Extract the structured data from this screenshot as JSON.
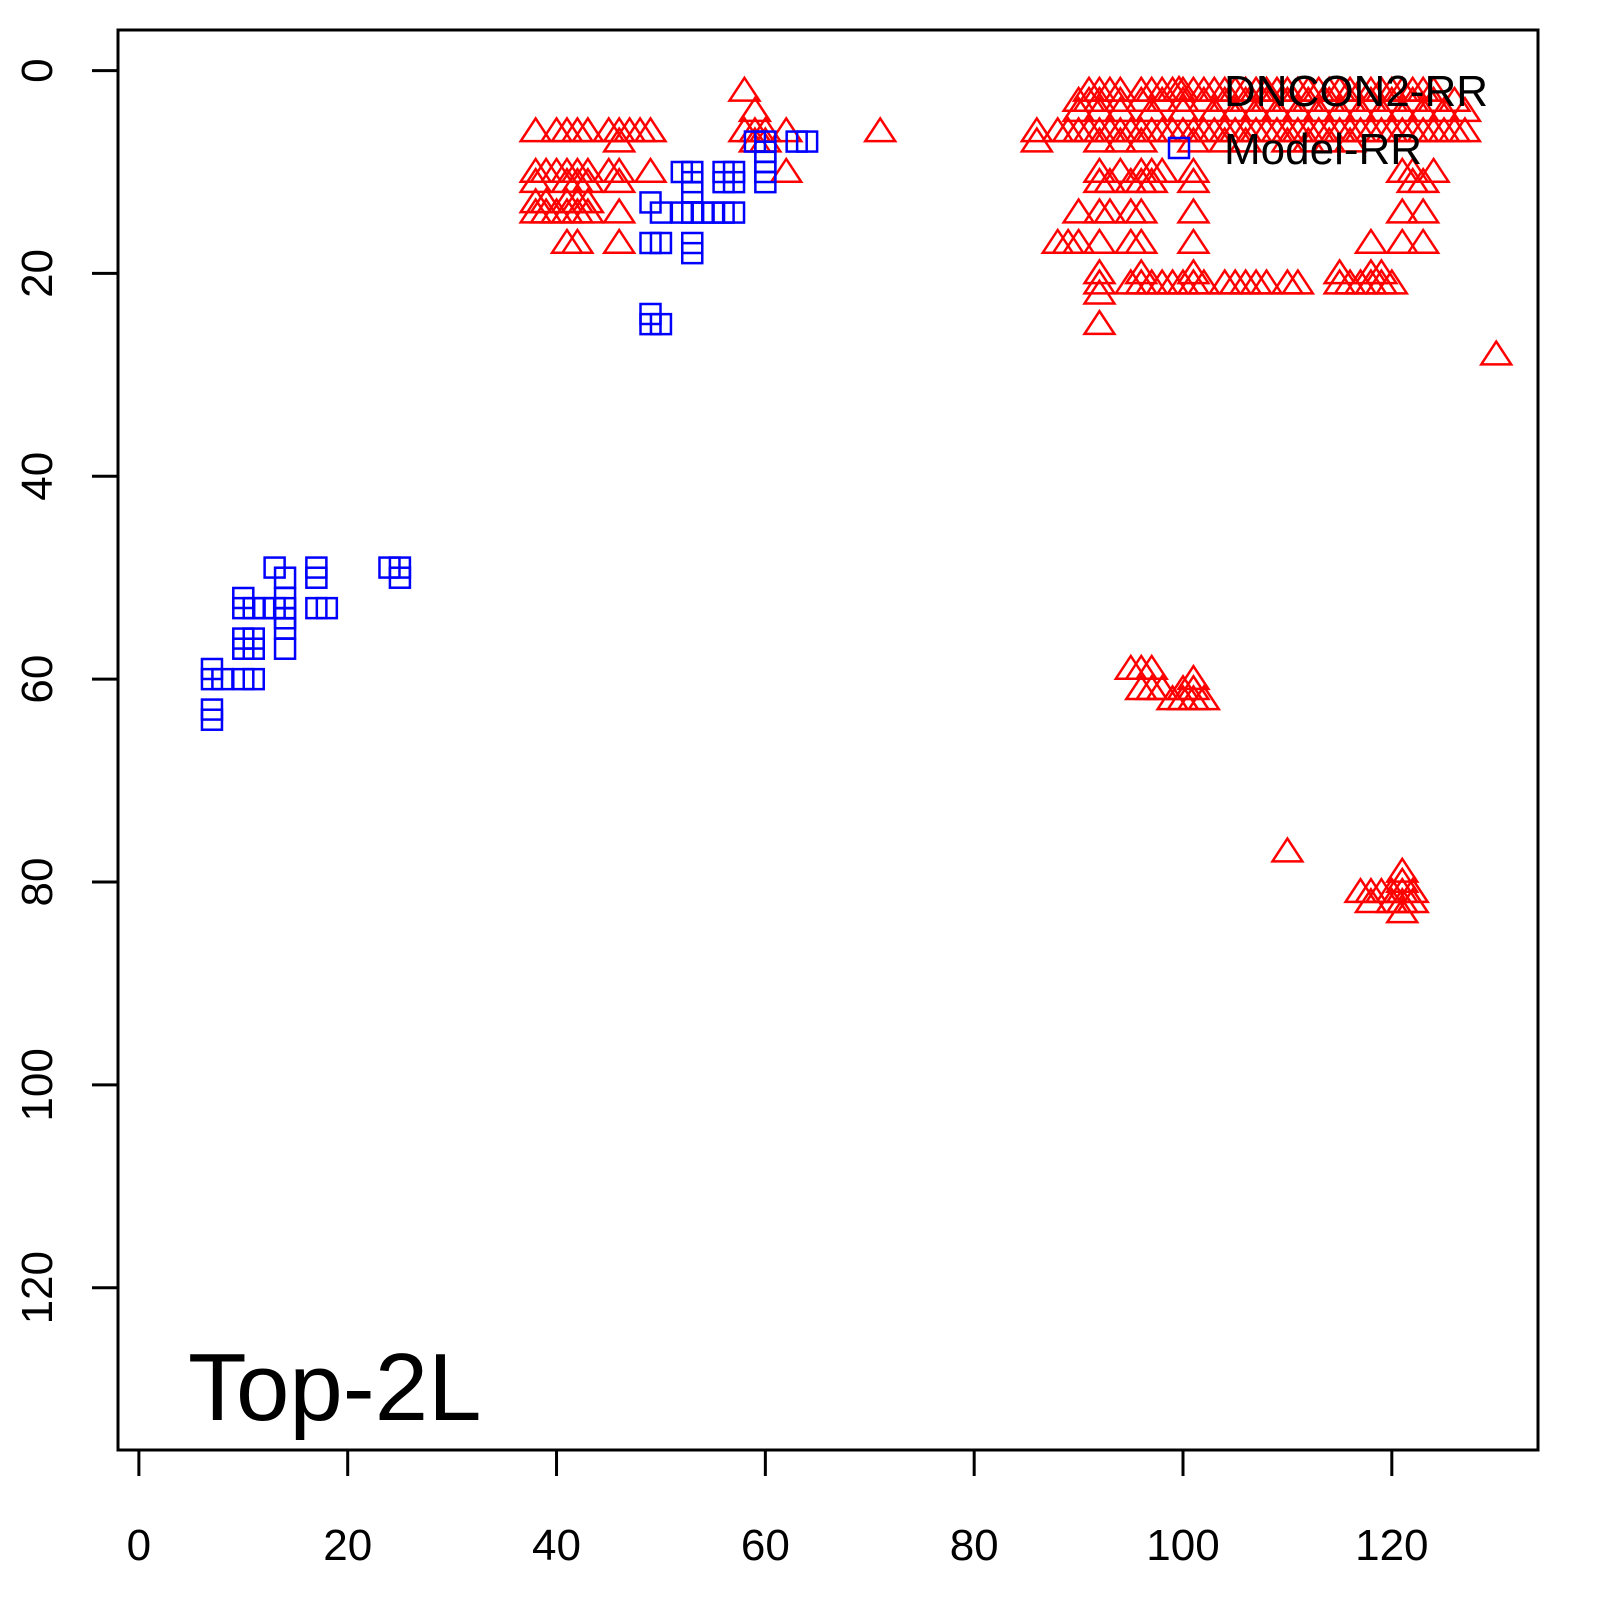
{
  "chart_data": {
    "type": "scatter",
    "title": "",
    "xlabel": "",
    "ylabel": "",
    "xlim": [
      -2,
      134
    ],
    "ylim": [
      -4,
      136
    ],
    "y_inverted": true,
    "x_ticks": [
      0,
      20,
      40,
      60,
      80,
      100,
      120
    ],
    "y_ticks": [
      0,
      20,
      40,
      60,
      80,
      100,
      120
    ],
    "x_tick_labels": [
      "0",
      "20",
      "40",
      "60",
      "80",
      "100",
      "120"
    ],
    "y_tick_labels": [
      "0",
      "20",
      "40",
      "60",
      "80",
      "100",
      "120"
    ],
    "annotation": "Top-2L",
    "legend": {
      "position": "top-right",
      "entries": [
        {
          "label": "DNCON2-RR",
          "color": "#ff0000",
          "marker": "triangle"
        },
        {
          "label": "Model-RR",
          "color": "#0000ff",
          "marker": "square"
        }
      ]
    },
    "grid": false,
    "series": [
      {
        "name": "DNCON2-RR",
        "color": "#ff0000",
        "marker": "triangle",
        "points": [
          [
            38,
            6
          ],
          [
            40,
            6
          ],
          [
            41,
            6
          ],
          [
            42,
            6
          ],
          [
            43,
            6
          ],
          [
            45,
            6
          ],
          [
            46,
            6
          ],
          [
            47,
            6
          ],
          [
            48,
            6
          ],
          [
            49,
            6
          ],
          [
            46,
            7
          ],
          [
            38,
            10
          ],
          [
            39,
            10
          ],
          [
            40,
            10
          ],
          [
            41,
            10
          ],
          [
            42,
            10
          ],
          [
            43,
            10
          ],
          [
            45,
            10
          ],
          [
            46,
            10
          ],
          [
            49,
            10
          ],
          [
            38,
            11
          ],
          [
            41,
            11
          ],
          [
            42,
            11
          ],
          [
            43,
            11
          ],
          [
            46,
            11
          ],
          [
            38,
            13
          ],
          [
            39,
            13
          ],
          [
            41,
            13
          ],
          [
            42,
            13
          ],
          [
            43,
            13
          ],
          [
            38,
            14
          ],
          [
            39,
            14
          ],
          [
            40,
            14
          ],
          [
            41,
            14
          ],
          [
            42,
            14
          ],
          [
            43,
            14
          ],
          [
            46,
            14
          ],
          [
            41,
            17
          ],
          [
            42,
            17
          ],
          [
            46,
            17
          ],
          [
            58,
            2
          ],
          [
            59,
            4
          ],
          [
            58,
            6
          ],
          [
            59,
            6
          ],
          [
            60,
            6
          ],
          [
            62,
            6
          ],
          [
            59,
            7
          ],
          [
            60,
            7
          ],
          [
            62,
            10
          ],
          [
            71,
            6
          ],
          [
            86,
            6
          ],
          [
            88,
            6
          ],
          [
            89,
            6
          ],
          [
            90,
            6
          ],
          [
            91,
            6
          ],
          [
            92,
            6
          ],
          [
            93,
            6
          ],
          [
            94,
            6
          ],
          [
            95,
            6
          ],
          [
            96,
            6
          ],
          [
            97,
            6
          ],
          [
            98,
            6
          ],
          [
            99,
            6
          ],
          [
            100,
            6
          ],
          [
            101,
            6
          ],
          [
            102,
            6
          ],
          [
            103,
            6
          ],
          [
            104,
            6
          ],
          [
            105,
            6
          ],
          [
            106,
            6
          ],
          [
            107,
            6
          ],
          [
            108,
            6
          ],
          [
            109,
            6
          ],
          [
            110,
            6
          ],
          [
            111,
            6
          ],
          [
            112,
            6
          ],
          [
            113,
            6
          ],
          [
            114,
            6
          ],
          [
            115,
            6
          ],
          [
            116,
            6
          ],
          [
            117,
            6
          ],
          [
            118,
            6
          ],
          [
            119,
            6
          ],
          [
            120,
            6
          ],
          [
            121,
            6
          ],
          [
            122,
            6
          ],
          [
            123,
            6
          ],
          [
            124,
            6
          ],
          [
            125,
            6
          ],
          [
            126,
            6
          ],
          [
            127,
            6
          ],
          [
            86,
            7
          ],
          [
            91,
            2
          ],
          [
            92,
            2
          ],
          [
            93,
            2
          ],
          [
            94,
            2
          ],
          [
            96,
            2
          ],
          [
            97,
            2
          ],
          [
            98,
            2
          ],
          [
            99,
            2
          ],
          [
            100,
            2
          ],
          [
            101,
            2
          ],
          [
            102,
            2
          ],
          [
            103,
            2
          ],
          [
            104,
            2
          ],
          [
            105,
            2
          ],
          [
            106,
            2
          ],
          [
            107,
            2
          ],
          [
            108,
            2
          ],
          [
            109,
            2
          ],
          [
            110,
            2
          ],
          [
            111,
            2
          ],
          [
            112,
            2
          ],
          [
            113,
            2
          ],
          [
            114,
            2
          ],
          [
            115,
            2
          ],
          [
            116,
            2
          ],
          [
            117,
            2
          ],
          [
            118,
            2
          ],
          [
            119,
            2
          ],
          [
            120,
            2
          ],
          [
            121,
            2
          ],
          [
            122,
            2
          ],
          [
            123,
            2
          ],
          [
            124,
            2
          ],
          [
            90,
            3
          ],
          [
            91,
            3
          ],
          [
            92,
            3
          ],
          [
            94,
            3
          ],
          [
            96,
            3
          ],
          [
            98,
            3
          ],
          [
            100,
            3
          ],
          [
            102,
            3
          ],
          [
            104,
            3
          ],
          [
            106,
            3
          ],
          [
            108,
            3
          ],
          [
            110,
            3
          ],
          [
            112,
            3
          ],
          [
            114,
            3
          ],
          [
            116,
            3
          ],
          [
            118,
            3
          ],
          [
            120,
            3
          ],
          [
            122,
            3
          ],
          [
            124,
            3
          ],
          [
            126,
            3
          ],
          [
            90,
            4
          ],
          [
            92,
            4
          ],
          [
            94,
            4
          ],
          [
            97,
            4
          ],
          [
            100,
            4
          ],
          [
            103,
            4
          ],
          [
            105,
            4
          ],
          [
            107,
            4
          ],
          [
            109,
            4
          ],
          [
            111,
            4
          ],
          [
            113,
            4
          ],
          [
            115,
            4
          ],
          [
            117,
            4
          ],
          [
            119,
            4
          ],
          [
            121,
            4
          ],
          [
            123,
            4
          ],
          [
            125,
            4
          ],
          [
            127,
            4
          ],
          [
            92,
            7
          ],
          [
            94,
            7
          ],
          [
            96,
            7
          ],
          [
            101,
            7
          ],
          [
            104,
            7
          ],
          [
            106,
            7
          ],
          [
            110,
            7
          ],
          [
            112,
            7
          ],
          [
            114,
            7
          ],
          [
            116,
            7
          ],
          [
            92,
            10
          ],
          [
            94,
            10
          ],
          [
            96,
            10
          ],
          [
            97,
            10
          ],
          [
            98,
            10
          ],
          [
            101,
            10
          ],
          [
            121,
            10
          ],
          [
            122,
            10
          ],
          [
            124,
            10
          ],
          [
            92,
            11
          ],
          [
            93,
            11
          ],
          [
            95,
            11
          ],
          [
            96,
            11
          ],
          [
            97,
            11
          ],
          [
            101,
            11
          ],
          [
            122,
            11
          ],
          [
            123,
            11
          ],
          [
            90,
            14
          ],
          [
            92,
            14
          ],
          [
            93,
            14
          ],
          [
            95,
            14
          ],
          [
            96,
            14
          ],
          [
            101,
            14
          ],
          [
            121,
            14
          ],
          [
            123,
            14
          ],
          [
            88,
            17
          ],
          [
            89,
            17
          ],
          [
            90,
            17
          ],
          [
            92,
            17
          ],
          [
            95,
            17
          ],
          [
            96,
            17
          ],
          [
            101,
            17
          ],
          [
            118,
            17
          ],
          [
            121,
            17
          ],
          [
            123,
            17
          ],
          [
            92,
            20
          ],
          [
            96,
            20
          ],
          [
            101,
            20
          ],
          [
            115,
            20
          ],
          [
            118,
            20
          ],
          [
            119,
            20
          ],
          [
            92,
            21
          ],
          [
            95,
            21
          ],
          [
            96,
            21
          ],
          [
            97,
            21
          ],
          [
            98,
            21
          ],
          [
            99,
            21
          ],
          [
            100,
            21
          ],
          [
            101,
            21
          ],
          [
            102,
            21
          ],
          [
            104,
            21
          ],
          [
            105,
            21
          ],
          [
            106,
            21
          ],
          [
            107,
            21
          ],
          [
            108,
            21
          ],
          [
            110,
            21
          ],
          [
            111,
            21
          ],
          [
            115,
            21
          ],
          [
            116,
            21
          ],
          [
            117,
            21
          ],
          [
            118,
            21
          ],
          [
            119,
            21
          ],
          [
            120,
            21
          ],
          [
            92,
            22
          ],
          [
            92,
            25
          ],
          [
            130,
            28
          ],
          [
            95,
            59
          ],
          [
            96,
            59
          ],
          [
            97,
            59
          ],
          [
            101,
            60
          ],
          [
            96,
            61
          ],
          [
            97,
            61
          ],
          [
            98,
            61
          ],
          [
            100,
            61
          ],
          [
            101,
            61
          ],
          [
            99,
            62
          ],
          [
            100,
            62
          ],
          [
            101,
            62
          ],
          [
            102,
            62
          ],
          [
            110,
            77
          ],
          [
            121,
            79
          ],
          [
            121,
            80
          ],
          [
            117,
            81
          ],
          [
            118,
            81
          ],
          [
            119,
            81
          ],
          [
            120,
            81
          ],
          [
            121,
            81
          ],
          [
            122,
            81
          ],
          [
            118,
            82
          ],
          [
            120,
            82
          ],
          [
            121,
            82
          ],
          [
            122,
            82
          ],
          [
            121,
            83
          ]
        ]
      },
      {
        "name": "Model-RR",
        "color": "#0000ff",
        "marker": "square",
        "points": [
          [
            59,
            7
          ],
          [
            60,
            7
          ],
          [
            63,
            7
          ],
          [
            64,
            7
          ],
          [
            60,
            8
          ],
          [
            60,
            9
          ],
          [
            60,
            10
          ],
          [
            60,
            11
          ],
          [
            52,
            10
          ],
          [
            53,
            10
          ],
          [
            56,
            10
          ],
          [
            57,
            10
          ],
          [
            53,
            11
          ],
          [
            56,
            11
          ],
          [
            57,
            11
          ],
          [
            53,
            12
          ],
          [
            49,
            13
          ],
          [
            50,
            14
          ],
          [
            52,
            14
          ],
          [
            53,
            14
          ],
          [
            54,
            14
          ],
          [
            55,
            14
          ],
          [
            56,
            14
          ],
          [
            57,
            14
          ],
          [
            49,
            17
          ],
          [
            50,
            17
          ],
          [
            53,
            17
          ],
          [
            53,
            18
          ],
          [
            49,
            24
          ],
          [
            49,
            25
          ],
          [
            50,
            25
          ],
          [
            13,
            49
          ],
          [
            14,
            50
          ],
          [
            17,
            49
          ],
          [
            17,
            50
          ],
          [
            24,
            49
          ],
          [
            25,
            49
          ],
          [
            25,
            50
          ],
          [
            10,
            52
          ],
          [
            10,
            53
          ],
          [
            11,
            53
          ],
          [
            12,
            53
          ],
          [
            13,
            53
          ],
          [
            14,
            53
          ],
          [
            17,
            53
          ],
          [
            18,
            53
          ],
          [
            14,
            52
          ],
          [
            14,
            54
          ],
          [
            14,
            55
          ],
          [
            10,
            56
          ],
          [
            11,
            56
          ],
          [
            10,
            57
          ],
          [
            11,
            57
          ],
          [
            14,
            57
          ],
          [
            7,
            59
          ],
          [
            7,
            60
          ],
          [
            8,
            60
          ],
          [
            10,
            60
          ],
          [
            11,
            60
          ],
          [
            7,
            63
          ],
          [
            7,
            64
          ]
        ]
      }
    ]
  }
}
